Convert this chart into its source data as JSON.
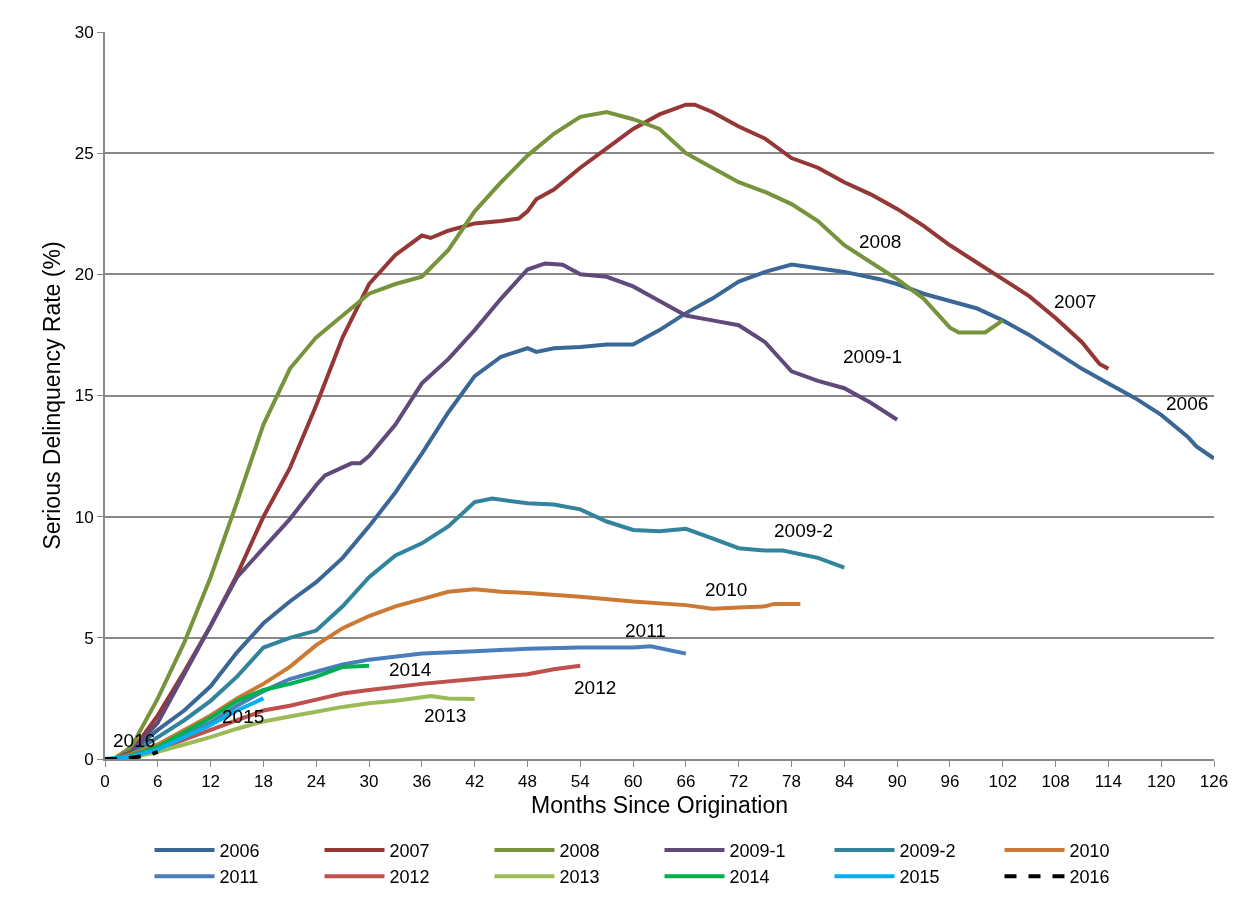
{
  "chart_data": {
    "type": "line",
    "xlabel": "Months Since Origination",
    "ylabel": "Serious Delinquency Rate (%)",
    "xlim": [
      0,
      126
    ],
    "xticks": [
      0,
      6,
      12,
      18,
      24,
      30,
      36,
      42,
      48,
      54,
      60,
      66,
      72,
      78,
      84,
      90,
      96,
      102,
      108,
      114,
      120,
      126
    ],
    "ylim": [
      0,
      30
    ],
    "yticks": [
      0,
      5,
      10,
      15,
      20,
      25,
      30
    ],
    "grid": "y",
    "legend": "bottom",
    "marker": "none",
    "series": [
      {
        "name": "2006",
        "color": "#3b6796",
        "x": [
          1,
          3,
          6,
          9,
          12,
          15,
          18,
          21,
          24,
          27,
          30,
          33,
          36,
          39,
          42,
          45,
          48,
          49,
          51,
          54,
          57,
          60,
          63,
          66,
          69,
          72,
          75,
          78,
          80,
          84,
          88,
          90,
          93,
          96,
          99,
          102,
          105,
          108,
          111,
          114,
          117,
          120,
          123,
          124,
          126
        ],
        "values": [
          0,
          0.3,
          1.2,
          2.0,
          3.0,
          4.4,
          5.6,
          6.5,
          7.3,
          8.3,
          9.6,
          11.0,
          12.6,
          14.3,
          15.8,
          16.6,
          16.95,
          16.8,
          16.95,
          17.0,
          17.1,
          17.1,
          17.7,
          18.4,
          19.0,
          19.7,
          20.1,
          20.4,
          20.3,
          20.1,
          19.8,
          19.6,
          19.2,
          18.9,
          18.6,
          18.1,
          17.5,
          16.8,
          16.1,
          15.5,
          14.9,
          14.2,
          13.3,
          12.9,
          12.4
        ]
      },
      {
        "name": "2007",
        "color": "#953735",
        "x": [
          1,
          3,
          6,
          9,
          12,
          15,
          18,
          21,
          24,
          27,
          30,
          33,
          36,
          37,
          39,
          42,
          45,
          47,
          48,
          49,
          51,
          54,
          57,
          60,
          63,
          66,
          67,
          69,
          72,
          75,
          78,
          81,
          84,
          87,
          90,
          93,
          96,
          99,
          102,
          105,
          108,
          111,
          113,
          114
        ],
        "values": [
          0,
          0.3,
          1.8,
          3.6,
          5.5,
          7.6,
          10.0,
          12.0,
          14.6,
          17.4,
          19.6,
          20.8,
          21.6,
          21.5,
          21.8,
          22.1,
          22.2,
          22.3,
          22.6,
          23.1,
          23.5,
          24.4,
          25.2,
          26.0,
          26.6,
          27.0,
          27.0,
          26.7,
          26.1,
          25.6,
          24.8,
          24.4,
          23.8,
          23.3,
          22.7,
          22.0,
          21.2,
          20.5,
          19.8,
          19.1,
          18.2,
          17.2,
          16.3,
          16.1
        ]
      },
      {
        "name": "2008",
        "color": "#77933c",
        "x": [
          1,
          3,
          6,
          9,
          12,
          15,
          18,
          21,
          24,
          27,
          30,
          33,
          36,
          39,
          42,
          45,
          48,
          51,
          54,
          57,
          60,
          63,
          66,
          69,
          72,
          75,
          78,
          81,
          84,
          87,
          90,
          93,
          96,
          97,
          100,
          102
        ],
        "values": [
          0,
          0.5,
          2.5,
          4.8,
          7.5,
          10.6,
          13.8,
          16.1,
          17.4,
          18.3,
          19.2,
          19.6,
          19.9,
          21.0,
          22.6,
          23.8,
          24.9,
          25.8,
          26.5,
          26.7,
          26.4,
          26.0,
          25.0,
          24.4,
          23.8,
          23.4,
          22.9,
          22.2,
          21.2,
          20.5,
          19.8,
          19.0,
          17.8,
          17.6,
          17.6,
          18.1
        ]
      },
      {
        "name": "2009-1",
        "color": "#604a7b",
        "x": [
          1,
          3,
          6,
          9,
          12,
          15,
          18,
          21,
          24,
          25,
          28,
          29,
          30,
          33,
          36,
          39,
          42,
          45,
          48,
          50,
          52,
          54,
          57,
          60,
          63,
          66,
          69,
          72,
          75,
          78,
          81,
          84,
          87,
          90
        ],
        "values": [
          0,
          0.3,
          1.5,
          3.5,
          5.5,
          7.5,
          8.7,
          9.9,
          11.3,
          11.7,
          12.2,
          12.2,
          12.5,
          13.8,
          15.5,
          16.5,
          17.7,
          19.0,
          20.2,
          20.45,
          20.4,
          20.0,
          19.9,
          19.5,
          18.9,
          18.3,
          18.1,
          17.9,
          17.2,
          16.0,
          15.6,
          15.3,
          14.7,
          14.0
        ]
      },
      {
        "name": "2009-2",
        "color": "#31849b",
        "x": [
          1,
          3,
          6,
          9,
          12,
          15,
          18,
          21,
          24,
          27,
          30,
          33,
          36,
          39,
          42,
          44,
          48,
          51,
          54,
          57,
          60,
          63,
          66,
          69,
          72,
          75,
          77,
          81,
          84
        ],
        "values": [
          0,
          0.2,
          0.9,
          1.6,
          2.4,
          3.4,
          4.6,
          5.0,
          5.3,
          6.3,
          7.5,
          8.4,
          8.9,
          9.6,
          10.6,
          10.75,
          10.55,
          10.5,
          10.3,
          9.8,
          9.45,
          9.4,
          9.5,
          9.1,
          8.7,
          8.6,
          8.6,
          8.3,
          7.9
        ]
      },
      {
        "name": "2010",
        "color": "#cc7a33",
        "x": [
          1,
          3,
          6,
          9,
          12,
          15,
          18,
          21,
          24,
          27,
          30,
          33,
          36,
          39,
          42,
          45,
          48,
          54,
          60,
          66,
          69,
          72,
          75,
          76,
          79
        ],
        "values": [
          0,
          0.2,
          0.6,
          1.2,
          1.8,
          2.5,
          3.1,
          3.8,
          4.7,
          5.4,
          5.9,
          6.3,
          6.6,
          6.9,
          7.0,
          6.9,
          6.85,
          6.7,
          6.5,
          6.35,
          6.2,
          6.25,
          6.3,
          6.4,
          6.4
        ]
      },
      {
        "name": "2011",
        "color": "#4a7ebb",
        "x": [
          1,
          3,
          6,
          9,
          12,
          15,
          18,
          21,
          24,
          27,
          30,
          36,
          42,
          48,
          54,
          60,
          62,
          66
        ],
        "values": [
          0,
          0.15,
          0.5,
          1.0,
          1.5,
          2.2,
          2.8,
          3.3,
          3.6,
          3.9,
          4.1,
          4.35,
          4.45,
          4.55,
          4.6,
          4.6,
          4.65,
          4.35
        ]
      },
      {
        "name": "2012",
        "color": "#c0504d",
        "x": [
          1,
          3,
          6,
          9,
          12,
          15,
          18,
          21,
          24,
          27,
          30,
          36,
          42,
          48,
          51,
          54
        ],
        "values": [
          0,
          0.1,
          0.4,
          0.8,
          1.2,
          1.6,
          2.0,
          2.2,
          2.45,
          2.7,
          2.85,
          3.1,
          3.3,
          3.5,
          3.7,
          3.85
        ]
      },
      {
        "name": "2013",
        "color": "#9bbb59",
        "x": [
          1,
          3,
          6,
          9,
          12,
          15,
          18,
          21,
          24,
          27,
          30,
          33,
          36,
          37,
          39,
          42
        ],
        "values": [
          0,
          0.05,
          0.3,
          0.6,
          0.9,
          1.25,
          1.55,
          1.75,
          1.95,
          2.15,
          2.3,
          2.4,
          2.55,
          2.6,
          2.5,
          2.48
        ]
      },
      {
        "name": "2014",
        "color": "#00b050",
        "x": [
          1,
          3,
          6,
          9,
          12,
          15,
          18,
          21,
          24,
          27,
          30
        ],
        "values": [
          0,
          0.15,
          0.5,
          1.1,
          1.7,
          2.4,
          2.85,
          3.1,
          3.4,
          3.8,
          3.85
        ]
      },
      {
        "name": "2015",
        "color": "#00b0f0",
        "x": [
          0,
          3,
          6,
          9,
          12,
          15,
          18
        ],
        "values": [
          0,
          0.1,
          0.4,
          0.9,
          1.4,
          2.0,
          2.5
        ]
      },
      {
        "name": "2016",
        "color": "#000000",
        "line_style": "dashed",
        "x": [
          0,
          1,
          2,
          3,
          4,
          5,
          6
        ],
        "values": [
          0,
          0,
          0,
          0.05,
          0.1,
          0.15,
          0.3
        ]
      }
    ],
    "annotations": [
      {
        "text": "2008",
        "x": 84,
        "y": 21.2
      },
      {
        "text": "2007",
        "x": 108,
        "y": 18.2
      },
      {
        "text": "2009-1",
        "x": 84,
        "y": 15.3
      },
      {
        "text": "2006",
        "x": 123,
        "y": 13.3
      },
      {
        "text": "2009-2",
        "x": 81,
        "y": 8.3
      },
      {
        "text": "2010",
        "x": 72,
        "y": 6.25
      },
      {
        "text": "2011",
        "x": 60,
        "y": 4.6
      },
      {
        "text": "2012",
        "x": 54,
        "y": 3.85
      },
      {
        "text": "2014",
        "x": 30,
        "y": 3.85
      },
      {
        "text": "2013",
        "x": 39,
        "y": 2.5
      },
      {
        "text": "2015",
        "x": 18,
        "y": 2.5
      },
      {
        "text": "2016",
        "x": 6,
        "y": 0.3
      }
    ]
  }
}
